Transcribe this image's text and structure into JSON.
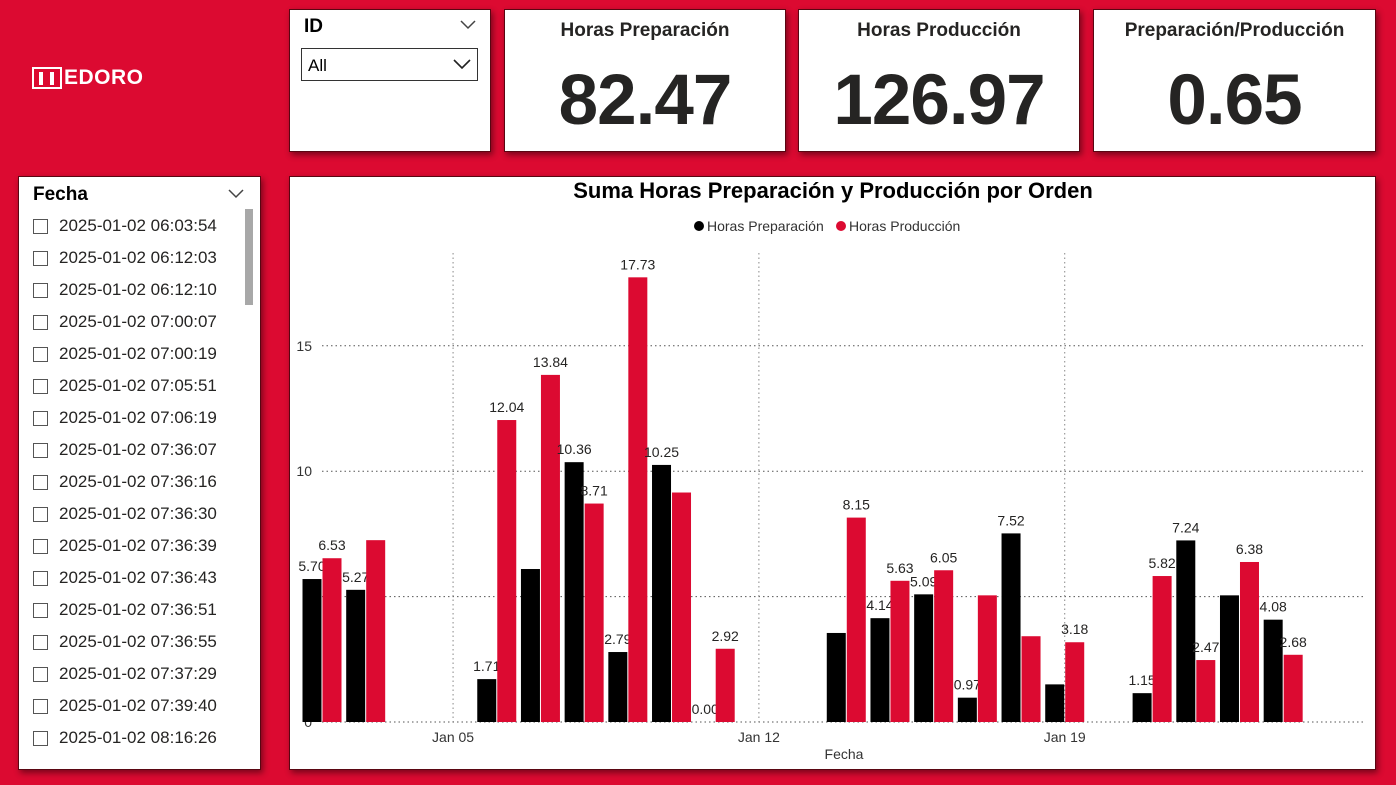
{
  "logo": {
    "text": "EDORO"
  },
  "id_slicer": {
    "title": "ID",
    "selected": "All"
  },
  "kpis": [
    {
      "title": "Horas Preparación",
      "value": "82.47"
    },
    {
      "title": "Horas Producción",
      "value": "126.97"
    },
    {
      "title": "Preparación/Producción",
      "value": "0.65"
    }
  ],
  "fecha_slicer": {
    "title": "Fecha",
    "items": [
      "2025-01-02 06:03:54",
      "2025-01-02 06:12:03",
      "2025-01-02 06:12:10",
      "2025-01-02 07:00:07",
      "2025-01-02 07:00:19",
      "2025-01-02 07:05:51",
      "2025-01-02 07:06:19",
      "2025-01-02 07:36:07",
      "2025-01-02 07:36:16",
      "2025-01-02 07:36:30",
      "2025-01-02 07:36:39",
      "2025-01-02 07:36:43",
      "2025-01-02 07:36:51",
      "2025-01-02 07:36:55",
      "2025-01-02 07:37:29",
      "2025-01-02 07:39:40",
      "2025-01-02 08:16:26"
    ]
  },
  "colors": {
    "background": "#dc0a31",
    "prep": "#000000",
    "prod": "#dc0a31",
    "grid": "#555555"
  },
  "chart_data": {
    "type": "bar",
    "title": "Suma Horas Preparación y Producción por Orden",
    "xlabel": "Fecha",
    "ylabel": "",
    "ylim": [
      0,
      18.7
    ],
    "yticks": [
      0,
      5,
      10,
      15
    ],
    "xticks": [
      "Jan 05",
      "Jan 12",
      "Jan 19"
    ],
    "legend_position": "top-center",
    "grid": true,
    "x": [
      "2025-01-02",
      "2025-01-03",
      "2025-01-06",
      "2025-01-07",
      "2025-01-08",
      "2025-01-09",
      "2025-01-10",
      "2025-01-11",
      "2025-01-14",
      "2025-01-15",
      "2025-01-16",
      "2025-01-17",
      "2025-01-18",
      "2025-01-19",
      "2025-01-21",
      "2025-01-22",
      "2025-01-23",
      "2025-01-24"
    ],
    "series": [
      {
        "name": "Horas Preparación",
        "values": [
          5.7,
          5.27,
          1.71,
          6.1,
          10.36,
          2.79,
          10.25,
          0.0,
          3.55,
          4.14,
          5.09,
          0.97,
          7.52,
          1.5,
          1.15,
          7.24,
          5.05,
          4.08
        ],
        "labels": [
          "5.70",
          "5.27",
          "1.71",
          "",
          "10.36",
          "2.79",
          "10.25",
          "0.00",
          "",
          "4.14",
          "5.09",
          "0.97",
          "7.52",
          "",
          "1.15",
          "7.24",
          "",
          "4.08"
        ]
      },
      {
        "name": "Horas Producción",
        "values": [
          6.53,
          7.25,
          12.04,
          13.84,
          8.71,
          17.73,
          9.15,
          2.92,
          8.15,
          5.63,
          6.05,
          5.05,
          3.42,
          3.18,
          5.82,
          2.47,
          6.38,
          2.68
        ],
        "labels": [
          "6.53",
          "",
          "12.04",
          "13.84",
          "8.71",
          "17.73",
          "",
          "2.92",
          "8.15",
          "5.63",
          "6.05",
          "",
          "",
          "3.18",
          "5.82",
          "2.47",
          "6.38",
          "2.68"
        ]
      }
    ]
  }
}
